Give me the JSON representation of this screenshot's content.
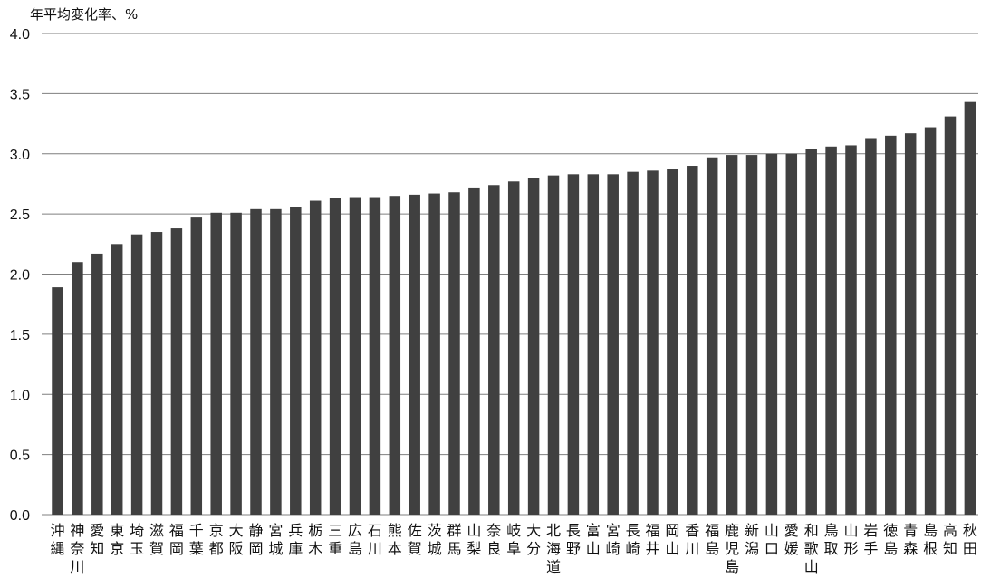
{
  "chart_data": {
    "type": "bar",
    "ylabel": "年平均変化率、%",
    "xlabel": "",
    "ylim": [
      0,
      4.0
    ],
    "yticks": [
      "0.0",
      "0.5",
      "1.0",
      "1.5",
      "2.0",
      "2.5",
      "3.0",
      "3.5",
      "4.0"
    ],
    "grid": true,
    "bar_color": "#404040",
    "categories": [
      "沖縄",
      "神奈川",
      "愛知",
      "東京",
      "埼玉",
      "滋賀",
      "福岡",
      "千葉",
      "京都",
      "大阪",
      "静岡",
      "宮城",
      "兵庫",
      "栃木",
      "三重",
      "広島",
      "石川",
      "熊本",
      "佐賀",
      "茨城",
      "群馬",
      "山梨",
      "奈良",
      "岐阜",
      "大分",
      "北海道",
      "長野",
      "富山",
      "宮崎",
      "長崎",
      "福井",
      "岡山",
      "香川",
      "福島",
      "鹿児島",
      "新潟",
      "山口",
      "愛媛",
      "和歌山",
      "鳥取",
      "山形",
      "岩手",
      "徳島",
      "青森",
      "島根",
      "高知",
      "秋田"
    ],
    "values": [
      1.89,
      2.1,
      2.17,
      2.25,
      2.33,
      2.35,
      2.38,
      2.47,
      2.51,
      2.51,
      2.54,
      2.54,
      2.56,
      2.61,
      2.63,
      2.64,
      2.64,
      2.65,
      2.66,
      2.67,
      2.68,
      2.72,
      2.74,
      2.77,
      2.8,
      2.82,
      2.83,
      2.83,
      2.83,
      2.85,
      2.86,
      2.87,
      2.9,
      2.97,
      2.99,
      2.99,
      3.0,
      3.0,
      3.04,
      3.06,
      3.07,
      3.13,
      3.15,
      3.17,
      3.22,
      3.31,
      3.43
    ]
  }
}
